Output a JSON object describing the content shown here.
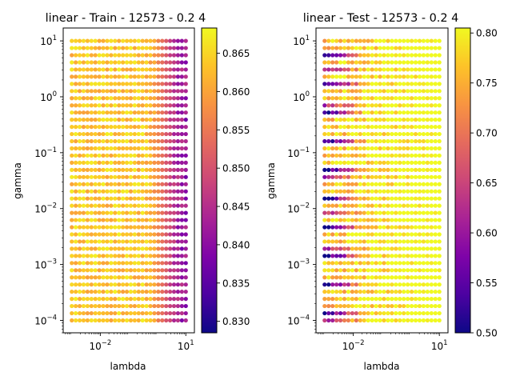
{
  "chart_data": [
    {
      "type": "scatter",
      "title": "linear - Train - 12573 - 0.2 4",
      "xlabel": "lambda",
      "ylabel": "gamma",
      "xscale": "log",
      "yscale": "log",
      "xlim": [
        0.0005,
        20
      ],
      "ylim": [
        6e-05,
        17
      ],
      "x_ticks": [
        {
          "value": 0.01,
          "base": "10",
          "exp": "−2"
        },
        {
          "value": 10,
          "base": "10",
          "exp": "1"
        }
      ],
      "y_ticks": [
        {
          "value": 0.0001,
          "base": "10",
          "exp": "−4"
        },
        {
          "value": 0.001,
          "base": "10",
          "exp": "−3"
        },
        {
          "value": 0.01,
          "base": "10",
          "exp": "−2"
        },
        {
          "value": 0.1,
          "base": "10",
          "exp": "−1"
        },
        {
          "value": 1,
          "base": "10",
          "exp": "0"
        },
        {
          "value": 10,
          "base": "10",
          "exp": "1"
        }
      ],
      "lambda_range": [
        0.001,
        10
      ],
      "lambda_count": 30,
      "gamma_range": [
        0.0001,
        10
      ],
      "gamma_count": 40,
      "colorbar": {
        "min": 0.8285,
        "max": 0.8683,
        "ticks": [
          "0.830",
          "0.835",
          "0.840",
          "0.845",
          "0.850",
          "0.855",
          "0.860",
          "0.865"
        ],
        "tick_values": [
          0.83,
          0.835,
          0.84,
          0.845,
          0.85,
          0.855,
          0.86,
          0.865
        ]
      },
      "colormap": "plasma",
      "pattern": "train"
    },
    {
      "type": "scatter",
      "title": "linear - Test - 12573 - 0.2 4",
      "xlabel": "lambda",
      "ylabel": "gamma",
      "xscale": "log",
      "yscale": "log",
      "xlim": [
        0.0005,
        20
      ],
      "ylim": [
        6e-05,
        17
      ],
      "x_ticks": [
        {
          "value": 0.01,
          "base": "10",
          "exp": "−2"
        },
        {
          "value": 10,
          "base": "10",
          "exp": "1"
        }
      ],
      "y_ticks": [
        {
          "value": 0.0001,
          "base": "10",
          "exp": "−4"
        },
        {
          "value": 0.001,
          "base": "10",
          "exp": "−3"
        },
        {
          "value": 0.01,
          "base": "10",
          "exp": "−2"
        },
        {
          "value": 0.1,
          "base": "10",
          "exp": "−1"
        },
        {
          "value": 1,
          "base": "10",
          "exp": "0"
        },
        {
          "value": 10,
          "base": "10",
          "exp": "1"
        }
      ],
      "lambda_range": [
        0.001,
        10
      ],
      "lambda_count": 30,
      "gamma_range": [
        0.0001,
        10
      ],
      "gamma_count": 40,
      "colorbar": {
        "min": 0.5,
        "max": 0.805,
        "ticks": [
          "0.50",
          "0.55",
          "0.60",
          "0.65",
          "0.70",
          "0.75",
          "0.80"
        ],
        "tick_values": [
          0.5,
          0.55,
          0.6,
          0.65,
          0.7,
          0.75,
          0.8
        ]
      },
      "colormap": "plasma",
      "pattern": "test"
    }
  ]
}
